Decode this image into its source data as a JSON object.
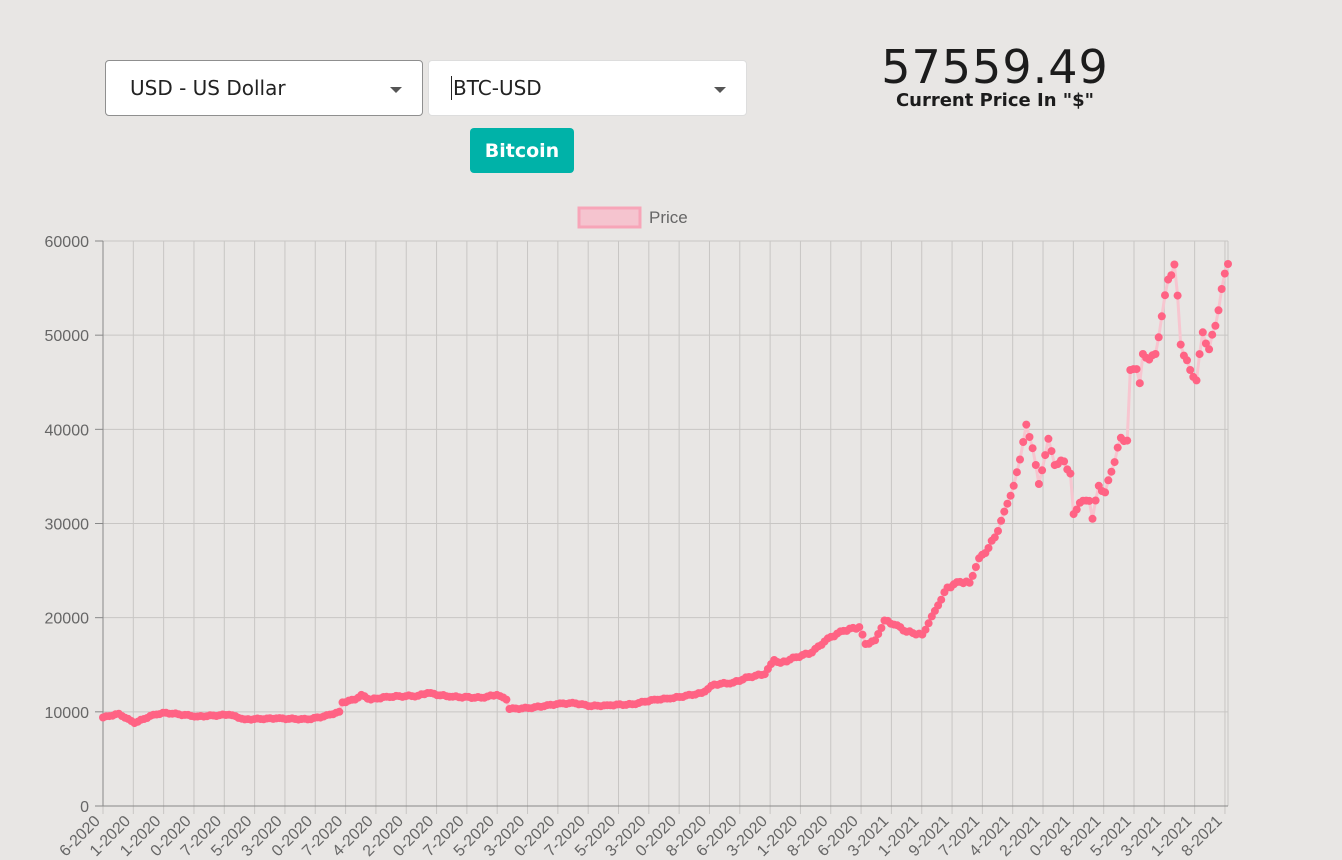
{
  "currency_select": {
    "value": "USD - US Dollar"
  },
  "ticker_select": {
    "value": "BTC-USD"
  },
  "coin_button": {
    "label": "Bitcoin"
  },
  "price": {
    "value": "57559.49",
    "caption": "Current Price In \"$\""
  },
  "colors": {
    "line": "#f7c6d0",
    "point": "#ff6384",
    "grid": "#c8c6c4",
    "axis": "#888888",
    "tick_text": "#666666"
  },
  "chart_data": {
    "type": "line",
    "legend": {
      "label": "Price",
      "position": "top"
    },
    "ylim": [
      0,
      60000
    ],
    "yticks": [
      0,
      10000,
      20000,
      30000,
      40000,
      50000,
      60000
    ],
    "xtick_labels": [
      "6-2020",
      "1-2020",
      "1-2020",
      "0-2020",
      "7-2020",
      "5-2020",
      "3-2020",
      "0-2020",
      "7-2020",
      "4-2020",
      "2-2020",
      "0-2020",
      "7-2020",
      "5-2020",
      "3-2020",
      "0-2020",
      "7-2020",
      "5-2020",
      "3-2020",
      "0-2020",
      "8-2020",
      "6-2020",
      "3-2020",
      "1-2020",
      "8-2020",
      "6-2020",
      "3-2021",
      "1-2021",
      "9-2021",
      "7-2021",
      "4-2021",
      "2-2021",
      "0-2021",
      "8-2021",
      "5-2021",
      "3-2021",
      "1-2021",
      "8-2021"
    ],
    "anchors": [
      [
        0,
        9400
      ],
      [
        5,
        9800
      ],
      [
        10,
        8800
      ],
      [
        16,
        9700
      ],
      [
        20,
        9900
      ],
      [
        30,
        9500
      ],
      [
        40,
        9700
      ],
      [
        45,
        9200
      ],
      [
        55,
        9300
      ],
      [
        65,
        9200
      ],
      [
        70,
        9500
      ],
      [
        75,
        10000
      ],
      [
        76,
        11000
      ],
      [
        80,
        11300
      ],
      [
        82,
        11800
      ],
      [
        85,
        11300
      ],
      [
        90,
        11600
      ],
      [
        100,
        11700
      ],
      [
        103,
        12000
      ],
      [
        110,
        11600
      ],
      [
        120,
        11500
      ],
      [
        125,
        11800
      ],
      [
        128,
        11300
      ],
      [
        129,
        10300
      ],
      [
        135,
        10400
      ],
      [
        140,
        10600
      ],
      [
        145,
        10900
      ],
      [
        150,
        10900
      ],
      [
        155,
        10600
      ],
      [
        160,
        10700
      ],
      [
        168,
        10800
      ],
      [
        175,
        11300
      ],
      [
        180,
        11400
      ],
      [
        190,
        12000
      ],
      [
        194,
        12900
      ],
      [
        200,
        13100
      ],
      [
        205,
        13700
      ],
      [
        210,
        14000
      ],
      [
        213,
        15500
      ],
      [
        215,
        15200
      ],
      [
        220,
        15800
      ],
      [
        225,
        16300
      ],
      [
        230,
        17800
      ],
      [
        235,
        18600
      ],
      [
        240,
        19000
      ],
      [
        242,
        17200
      ],
      [
        245,
        17600
      ],
      [
        248,
        19700
      ],
      [
        252,
        19200
      ],
      [
        255,
        18500
      ],
      [
        260,
        18200
      ],
      [
        262,
        19400
      ],
      [
        265,
        21300
      ],
      [
        268,
        23200
      ],
      [
        272,
        23800
      ],
      [
        275,
        23700
      ],
      [
        278,
        26300
      ],
      [
        281,
        27400
      ],
      [
        284,
        29200
      ],
      [
        287,
        32100
      ],
      [
        289,
        34000
      ],
      [
        291,
        36800
      ],
      [
        293,
        40500
      ],
      [
        295,
        38000
      ],
      [
        297,
        34200
      ],
      [
        300,
        39000
      ],
      [
        302,
        36200
      ],
      [
        305,
        36600
      ],
      [
        307,
        35300
      ],
      [
        308,
        31000
      ],
      [
        310,
        32200
      ],
      [
        313,
        32400
      ],
      [
        314,
        30500
      ],
      [
        316,
        34000
      ],
      [
        318,
        33300
      ],
      [
        320,
        35500
      ],
      [
        323,
        39100
      ],
      [
        325,
        38800
      ],
      [
        326,
        46300
      ],
      [
        328,
        46400
      ],
      [
        329,
        44900
      ],
      [
        330,
        48000
      ],
      [
        332,
        47400
      ],
      [
        334,
        48000
      ],
      [
        336,
        52000
      ],
      [
        338,
        55900
      ],
      [
        340,
        57500
      ],
      [
        341,
        54200
      ],
      [
        342,
        49000
      ],
      [
        345,
        46300
      ],
      [
        347,
        45200
      ],
      [
        349,
        50300
      ],
      [
        351,
        48500
      ],
      [
        353,
        51000
      ],
      [
        355,
        54900
      ],
      [
        357,
        57559
      ]
    ]
  }
}
